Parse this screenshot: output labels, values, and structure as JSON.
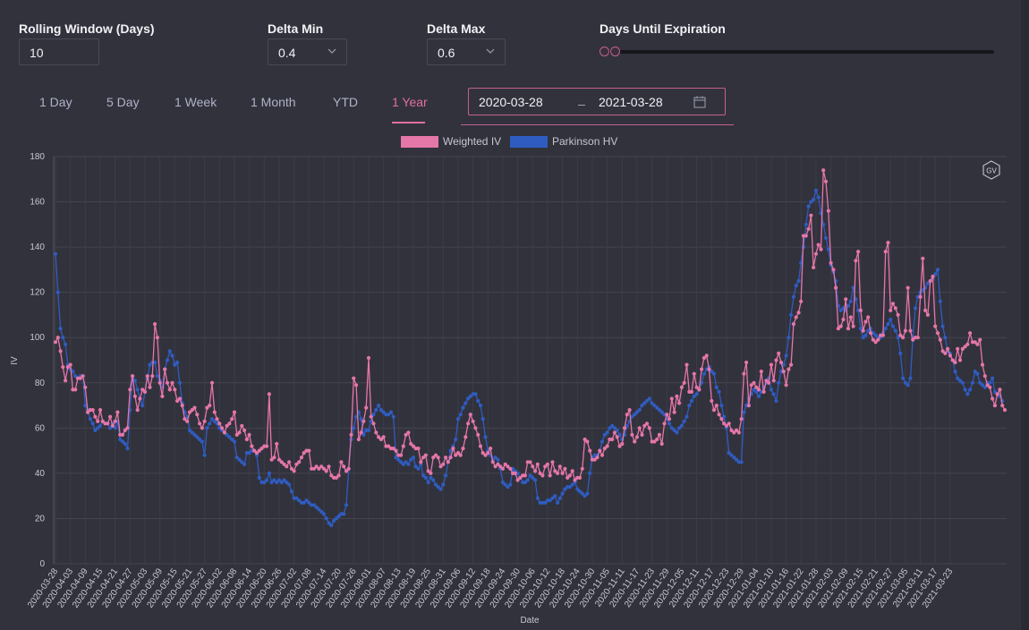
{
  "controls": {
    "rolling_label": "Rolling Window (Days)",
    "rolling_value": "10",
    "delta_min_label": "Delta Min",
    "delta_min_value": "0.4",
    "delta_max_label": "Delta Max",
    "delta_max_value": "0.6",
    "dte_label": "Days Until Expiration"
  },
  "tabs": [
    {
      "label": "1 Day"
    },
    {
      "label": "5 Day"
    },
    {
      "label": "1 Week"
    },
    {
      "label": "1 Month"
    },
    {
      "label": "YTD"
    },
    {
      "label": "1 Year",
      "active": true
    }
  ],
  "date_range": {
    "start": "2020-03-28",
    "end": "2021-03-28"
  },
  "watermark": "GV",
  "colors": {
    "accent": "#e0709f",
    "weighted_iv": "#e576a8",
    "parkinson_hv": "#2f5cc0"
  },
  "chart_data": {
    "type": "line",
    "xlabel": "Date",
    "ylabel": "IV",
    "ylim": [
      0,
      180
    ],
    "y_ticks": [
      0,
      20,
      40,
      60,
      80,
      100,
      120,
      140,
      160,
      180
    ],
    "grid": true,
    "legend_position": "top-center",
    "x_ticks": [
      "2020-03-28",
      "2020-04-03",
      "2020-04-09",
      "2020-04-15",
      "2020-04-21",
      "2020-04-27",
      "2020-05-03",
      "2020-05-09",
      "2020-05-15",
      "2020-05-21",
      "2020-05-27",
      "2020-06-02",
      "2020-06-08",
      "2020-06-14",
      "2020-06-20",
      "2020-06-26",
      "2020-07-02",
      "2020-07-08",
      "2020-07-14",
      "2020-07-20",
      "2020-07-26",
      "2020-08-01",
      "2020-08-07",
      "2020-08-13",
      "2020-08-19",
      "2020-08-25",
      "2020-08-31",
      "2020-09-06",
      "2020-09-12",
      "2020-09-18",
      "2020-09-24",
      "2020-09-30",
      "2020-10-06",
      "2020-10-12",
      "2020-10-18",
      "2020-10-24",
      "2020-10-30",
      "2020-11-05",
      "2020-11-11",
      "2020-11-17",
      "2020-11-23",
      "2020-11-29",
      "2020-12-05",
      "2020-12-11",
      "2020-12-17",
      "2020-12-23",
      "2020-12-29",
      "2021-01-04",
      "2021-01-10",
      "2021-01-16",
      "2021-01-22",
      "2021-01-28",
      "2021-02-03",
      "2021-02-09",
      "2021-02-15",
      "2021-02-21",
      "2021-02-27",
      "2021-03-05",
      "2021-03-11",
      "2021-03-17",
      "2021-03-23"
    ],
    "series": [
      {
        "name": "Weighted IV",
        "color": "#e576a8",
        "values": [
          98,
          100,
          94,
          87,
          81,
          87,
          88,
          77,
          77,
          82,
          82,
          83,
          78,
          67,
          68,
          68,
          65,
          63,
          68,
          63,
          62,
          62,
          65,
          61,
          63,
          67,
          57,
          57,
          59,
          60,
          77,
          83,
          74,
          68,
          73,
          77,
          76,
          83,
          78,
          83,
          106,
          100,
          80,
          74,
          86,
          80,
          77,
          80,
          77,
          72,
          73,
          70,
          64,
          63,
          67,
          68,
          69,
          66,
          62,
          60,
          63,
          69,
          70,
          80,
          67,
          64,
          62,
          60,
          58,
          61,
          62,
          64,
          67,
          57,
          58,
          61,
          59,
          55,
          57,
          52,
          50,
          49,
          50,
          51,
          52,
          52,
          75,
          46,
          47,
          53,
          46,
          45,
          44,
          43,
          45,
          42,
          41,
          44,
          45,
          47,
          49,
          50,
          50,
          42,
          42,
          43,
          42,
          43,
          42,
          41,
          43,
          39,
          38,
          38,
          39,
          45,
          43,
          41,
          42,
          57,
          82,
          79,
          55,
          58,
          63,
          69,
          91,
          65,
          62,
          58,
          56,
          55,
          56,
          52,
          52,
          51,
          51,
          50,
          48,
          48,
          52,
          57,
          58,
          53,
          52,
          51,
          51,
          45,
          47,
          48,
          41,
          40,
          47,
          48,
          47,
          43,
          44,
          47,
          45,
          47,
          51,
          48,
          49,
          48,
          51,
          56,
          62,
          66,
          63,
          60,
          57,
          52,
          49,
          48,
          49,
          51,
          45,
          43,
          44,
          43,
          42,
          44,
          43,
          42,
          40,
          40,
          37,
          38,
          39,
          39,
          45,
          45,
          43,
          41,
          44,
          40,
          39,
          43,
          44,
          39,
          45,
          41,
          40,
          43,
          40,
          42,
          38,
          39,
          41,
          37,
          38,
          38,
          42,
          55,
          54,
          50,
          46,
          46,
          47,
          50,
          48,
          51,
          52,
          55,
          55,
          58,
          56,
          52,
          53,
          60,
          66,
          68,
          57,
          54,
          56,
          60,
          57,
          61,
          62,
          60,
          54,
          54,
          55,
          57,
          53,
          62,
          66,
          64,
          73,
          67,
          74,
          71,
          78,
          80,
          88,
          76,
          76,
          84,
          78,
          77,
          86,
          91,
          92,
          86,
          72,
          68,
          70,
          66,
          64,
          62,
          61,
          62,
          59,
          58,
          59,
          58,
          64,
          84,
          89,
          70,
          79,
          80,
          78,
          77,
          85,
          76,
          81,
          80,
          88,
          81,
          90,
          93,
          89,
          85,
          79,
          86,
          88,
          106,
          109,
          111,
          116,
          145,
          145,
          148,
          154,
          131,
          137,
          141,
          139,
          174,
          169,
          156,
          133,
          130,
          122,
          104,
          105,
          108,
          117,
          104,
          109,
          105,
          134,
          138,
          112,
          103,
          107,
          109,
          102,
          99,
          98,
          99,
          101,
          101,
          138,
          142,
          112,
          115,
          113,
          110,
          101,
          100,
          103,
          122,
          103,
          99,
          100,
          100,
          118,
          135,
          112,
          110,
          125,
          127,
          105,
          102,
          99,
          94,
          93,
          95,
          92,
          90,
          89,
          95,
          90,
          95,
          96,
          97,
          102,
          98,
          98,
          97,
          99,
          88,
          83,
          79,
          78,
          73,
          70,
          75,
          77,
          70,
          68
        ]
      },
      {
        "name": "Parkinson HV",
        "color": "#2f5cc0",
        "values": [
          137,
          120,
          104,
          100,
          97,
          88,
          86,
          85,
          83,
          82,
          83,
          83,
          70,
          68,
          64,
          62,
          59,
          60,
          61,
          63,
          62,
          62,
          60,
          62,
          60,
          63,
          55,
          54,
          53,
          51,
          68,
          83,
          81,
          77,
          73,
          70,
          76,
          82,
          88,
          89,
          89,
          83,
          81,
          78,
          86,
          90,
          94,
          92,
          88,
          89,
          80,
          71,
          67,
          65,
          59,
          58,
          57,
          56,
          55,
          54,
          48,
          60,
          62,
          64,
          63,
          62,
          60,
          59,
          58,
          57,
          56,
          55,
          54,
          47,
          46,
          45,
          44,
          49,
          49,
          50,
          50,
          48,
          38,
          36,
          36,
          37,
          40,
          36,
          37,
          36,
          37,
          36,
          37,
          36,
          35,
          32,
          29,
          29,
          28,
          27,
          27,
          28,
          27,
          26,
          26,
          25,
          24,
          23,
          22,
          20,
          18,
          17,
          19,
          20,
          21,
          22,
          22,
          26,
          42,
          55,
          60,
          65,
          67,
          64,
          57,
          59,
          59,
          63,
          66,
          68,
          70,
          68,
          67,
          66,
          66,
          67,
          65,
          47,
          46,
          45,
          44,
          45,
          44,
          46,
          47,
          43,
          42,
          44,
          39,
          38,
          36,
          38,
          37,
          35,
          34,
          33,
          35,
          39,
          45,
          50,
          52,
          55,
          64,
          66,
          69,
          71,
          73,
          74,
          75,
          75,
          72,
          70,
          64,
          56,
          50,
          48,
          46,
          47,
          46,
          42,
          36,
          35,
          34,
          35,
          42,
          41,
          40,
          38,
          36,
          36,
          37,
          39,
          38,
          37,
          29,
          27,
          27,
          27,
          28,
          28,
          29,
          30,
          27,
          29,
          31,
          33,
          34,
          34,
          35,
          36,
          33,
          32,
          31,
          30,
          31,
          40,
          47,
          48,
          48,
          50,
          54,
          57,
          58,
          60,
          61,
          60,
          59,
          57,
          55,
          57,
          61,
          63,
          65,
          66,
          67,
          68,
          70,
          71,
          72,
          73,
          71,
          70,
          69,
          68,
          67,
          66,
          64,
          62,
          60,
          59,
          58,
          60,
          61,
          63,
          65,
          70,
          72,
          74,
          75,
          77,
          80,
          84,
          86,
          87,
          85,
          84,
          78,
          76,
          70,
          65,
          60,
          49,
          48,
          47,
          46,
          45,
          45,
          67,
          70,
          73,
          75,
          77,
          76,
          74,
          76,
          78,
          80,
          82,
          77,
          75,
          72,
          80,
          85,
          88,
          92,
          100,
          110,
          118,
          123,
          125,
          133,
          140,
          150,
          158,
          160,
          161,
          165,
          162,
          155,
          150,
          144,
          139,
          132,
          129,
          125,
          114,
          112,
          113,
          112,
          114,
          116,
          122,
          117,
          112,
          104,
          100,
          101,
          103,
          104,
          102,
          101,
          100,
          100,
          102,
          104,
          106,
          108,
          105,
          103,
          100,
          93,
          82,
          80,
          79,
          82,
          100,
          113,
          118,
          120,
          121,
          122,
          124,
          125,
          126,
          128,
          130,
          116,
          105,
          100,
          94,
          93,
          90,
          85,
          82,
          81,
          80,
          77,
          75,
          77,
          80,
          85,
          84,
          80,
          79,
          78,
          80,
          80,
          82,
          76,
          75,
          74,
          72
        ]
      }
    ]
  }
}
